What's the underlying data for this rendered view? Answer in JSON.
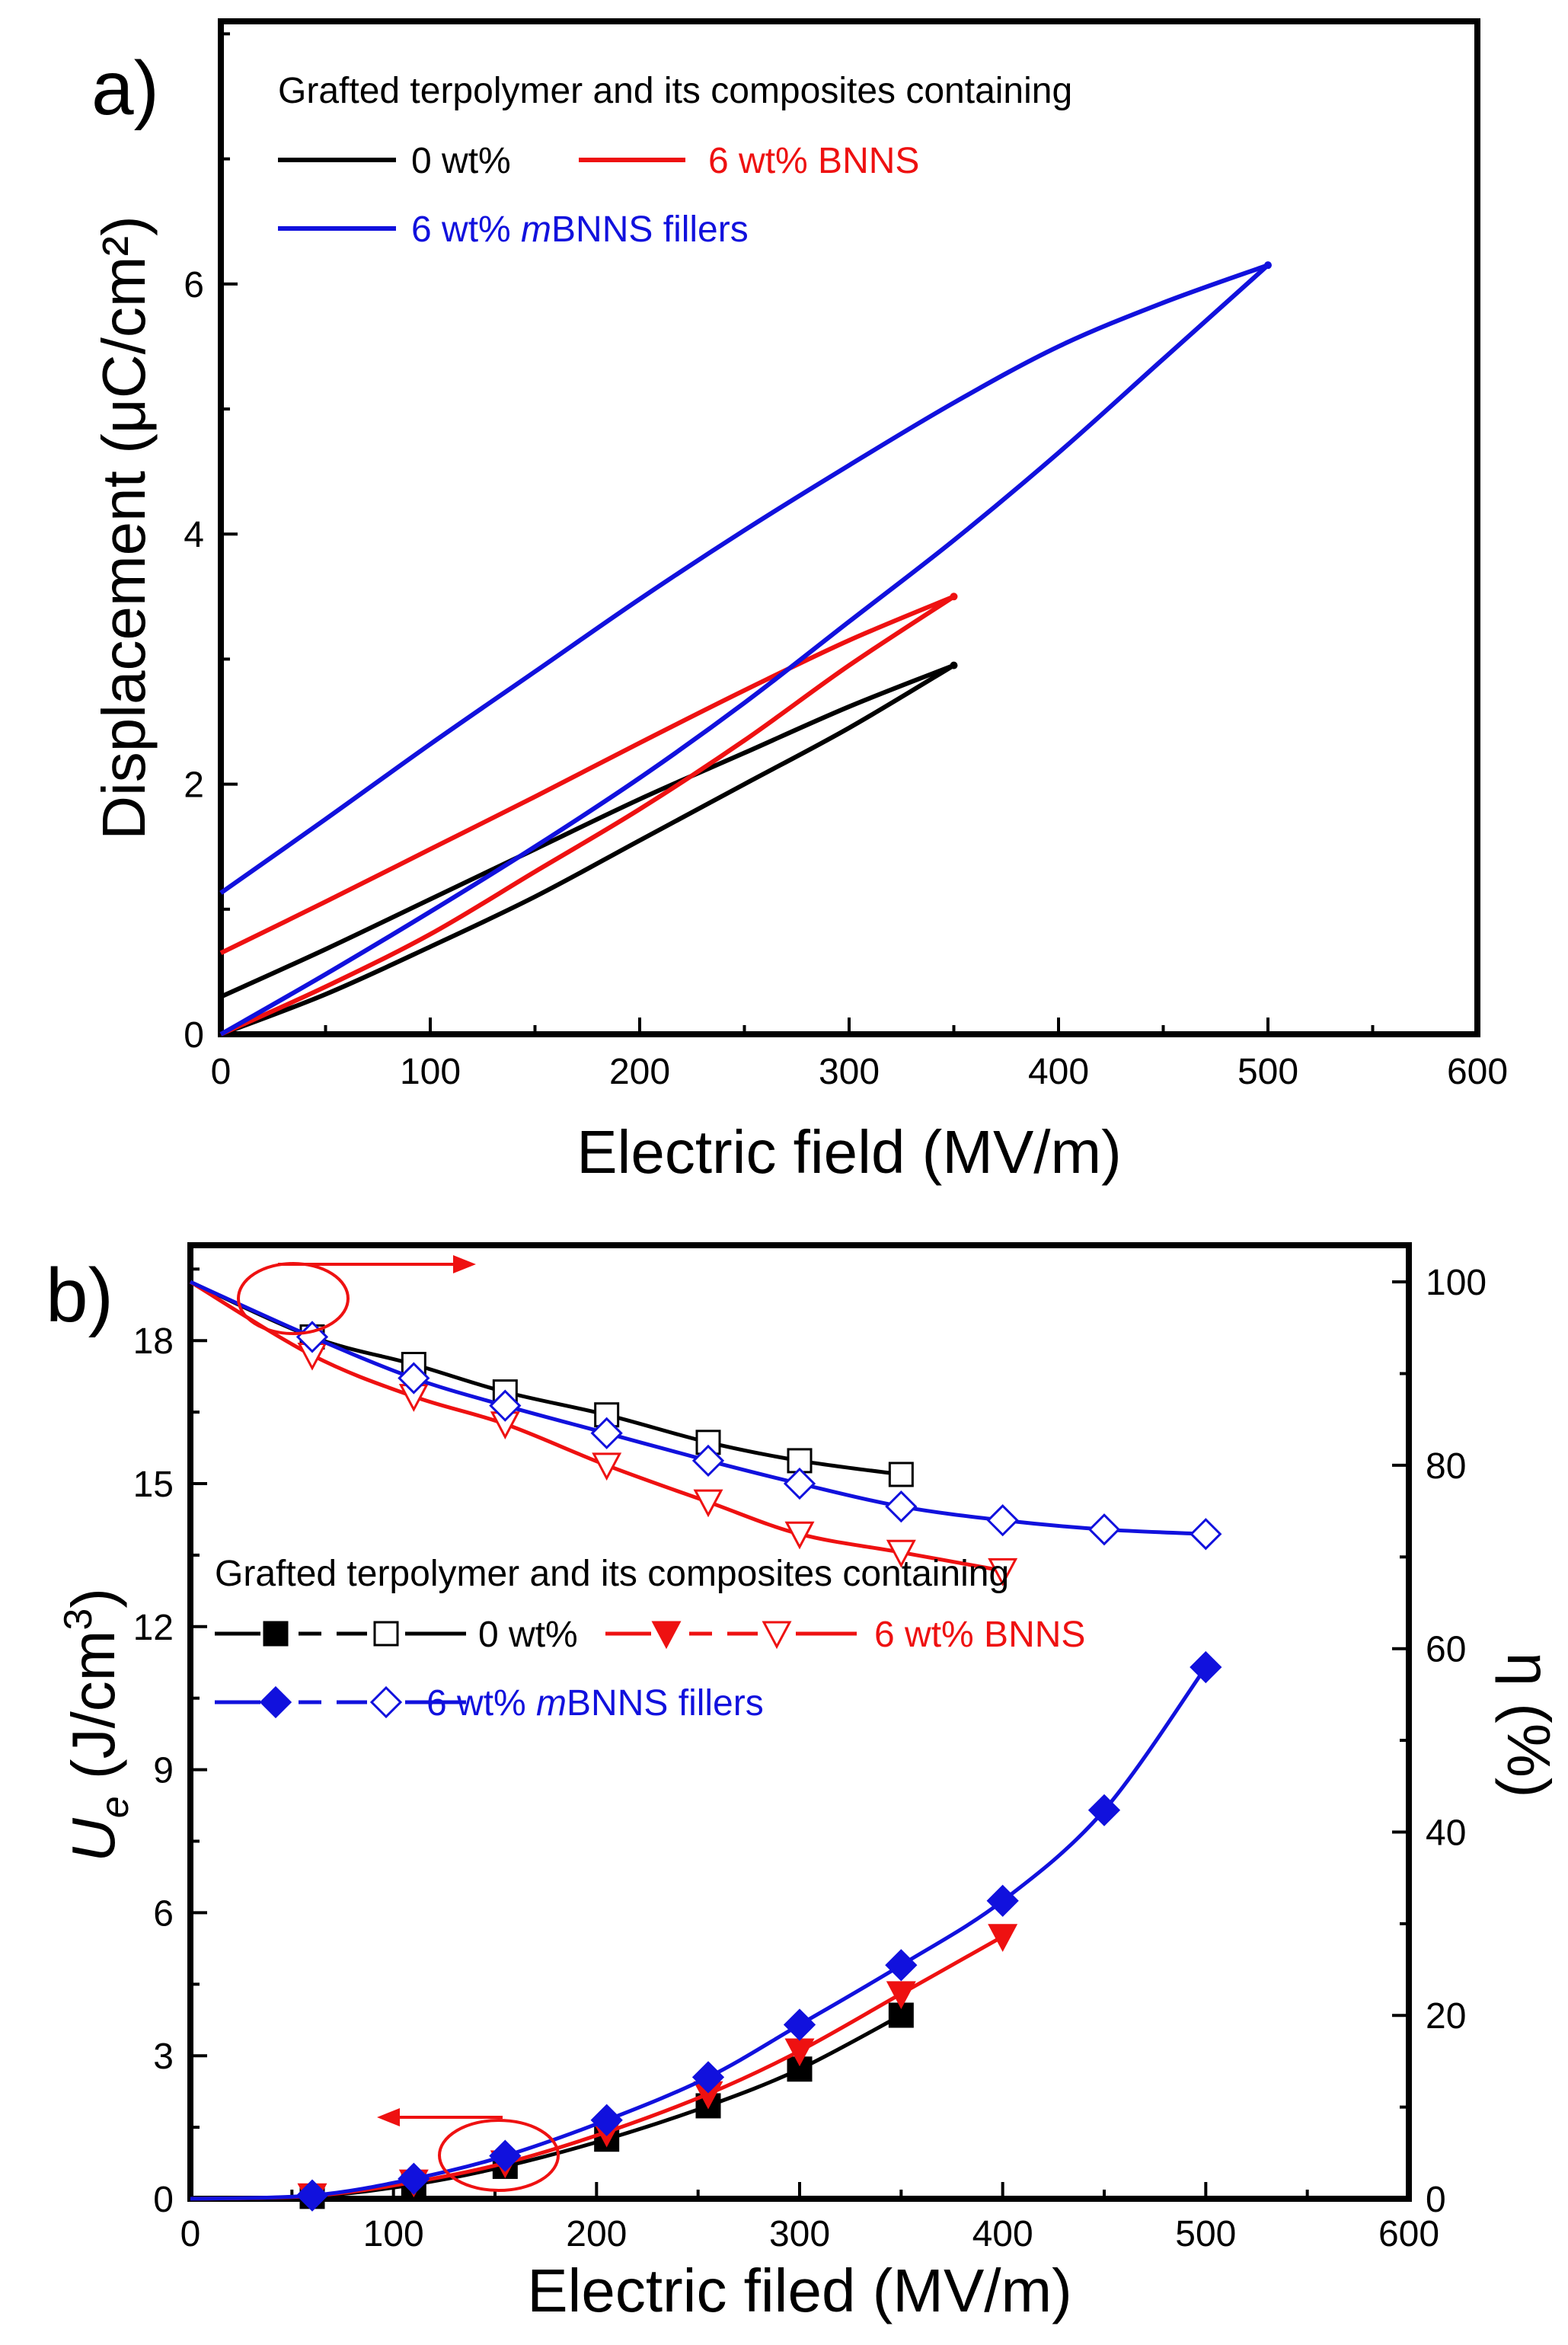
{
  "chart_data": [
    {
      "panel": "a)",
      "type": "line",
      "xlabel": "Electric field (MV/m)",
      "ylabel": "Displacement (μC/cm²)",
      "xlim": [
        0,
        600
      ],
      "ylim": [
        0,
        8.1
      ],
      "xticks": [
        0,
        100,
        200,
        300,
        400,
        500,
        600
      ],
      "yticks": [
        0,
        2,
        4,
        6
      ],
      "grid": false,
      "legend_title": "Grafted terpolymer and its composites containing",
      "legend_placement": "top-left",
      "series": [
        {
          "name": "0 wt%",
          "color": "#000000",
          "emax": 350,
          "dmax": 2.95,
          "charge": [
            [
              0,
              0
            ],
            [
              50,
              0.32
            ],
            [
              100,
              0.7
            ],
            [
              150,
              1.1
            ],
            [
              200,
              1.55
            ],
            [
              250,
              2.0
            ],
            [
              300,
              2.45
            ],
            [
              350,
              2.95
            ]
          ],
          "discharge": [
            [
              350,
              2.95
            ],
            [
              300,
              2.62
            ],
            [
              250,
              2.25
            ],
            [
              200,
              1.88
            ],
            [
              150,
              1.48
            ],
            [
              100,
              1.08
            ],
            [
              50,
              0.68
            ],
            [
              0,
              0.3
            ]
          ]
        },
        {
          "name": "6 wt% BNNS",
          "color": "#ee1111",
          "emax": 350,
          "dmax": 3.5,
          "charge": [
            [
              0,
              0
            ],
            [
              50,
              0.38
            ],
            [
              100,
              0.8
            ],
            [
              150,
              1.3
            ],
            [
              200,
              1.8
            ],
            [
              250,
              2.35
            ],
            [
              300,
              2.95
            ],
            [
              350,
              3.5
            ]
          ],
          "discharge": [
            [
              350,
              3.5
            ],
            [
              300,
              3.15
            ],
            [
              250,
              2.75
            ],
            [
              200,
              2.33
            ],
            [
              150,
              1.9
            ],
            [
              100,
              1.48
            ],
            [
              50,
              1.06
            ],
            [
              0,
              0.65
            ]
          ]
        },
        {
          "name": "6 wt% mBNNS fillers",
          "name_parts": [
            "6 wt% ",
            "m",
            "BNNS fillers"
          ],
          "color": "#1111dd",
          "emax": 500,
          "dmax": 6.15,
          "charge": [
            [
              0,
              0
            ],
            [
              50,
              0.48
            ],
            [
              100,
              0.98
            ],
            [
              150,
              1.5
            ],
            [
              200,
              2.05
            ],
            [
              250,
              2.65
            ],
            [
              300,
              3.3
            ],
            [
              350,
              3.95
            ],
            [
              400,
              4.65
            ],
            [
              450,
              5.4
            ],
            [
              500,
              6.15
            ]
          ],
          "discharge": [
            [
              500,
              6.15
            ],
            [
              450,
              5.85
            ],
            [
              400,
              5.5
            ],
            [
              350,
              5.05
            ],
            [
              300,
              4.55
            ],
            [
              250,
              4.03
            ],
            [
              200,
              3.48
            ],
            [
              150,
              2.9
            ],
            [
              100,
              2.32
            ],
            [
              50,
              1.72
            ],
            [
              0,
              1.13
            ]
          ]
        }
      ]
    },
    {
      "panel": "b)",
      "type": "line",
      "xlabel": "Electric filed (MV/m)",
      "ylabel": "Ue (J/cm3)",
      "ylabel_parts": [
        "U",
        "e",
        " (J/cm",
        "3",
        ")"
      ],
      "y2label": "η (%)",
      "xlim": [
        0,
        600
      ],
      "ylim": [
        0,
        20
      ],
      "y2lim": [
        0,
        104
      ],
      "xticks": [
        0,
        100,
        200,
        300,
        400,
        500,
        600
      ],
      "yticks": [
        0,
        3,
        6,
        9,
        12,
        15,
        18
      ],
      "y2ticks": [
        0,
        20,
        40,
        60,
        80,
        100
      ],
      "grid": false,
      "legend_title": "Grafted terpolymer and its composites containing",
      "legend_placement": "center-left",
      "series": [
        {
          "name": "0 wt%",
          "color": "#000000",
          "ue_marker": "square-filled",
          "eta_marker": "square-open",
          "x": [
            0,
            60,
            110,
            155,
            205,
            255,
            300,
            350
          ],
          "ue": [
            0,
            0.05,
            0.3,
            0.68,
            1.25,
            1.95,
            2.72,
            3.85
          ],
          "eta": [
            100,
            94,
            91,
            88,
            85.5,
            82.5,
            80.5,
            79
          ]
        },
        {
          "name": "6 wt% BNNS",
          "color": "#ee1111",
          "ue_marker": "triangle-down-filled",
          "eta_marker": "triangle-down-open",
          "x": [
            0,
            60,
            110,
            155,
            205,
            255,
            300,
            350,
            400
          ],
          "ue": [
            0,
            0.06,
            0.35,
            0.75,
            1.4,
            2.2,
            3.1,
            4.3,
            5.5
          ],
          "eta": [
            100,
            92,
            87.5,
            84.5,
            80,
            76,
            72.5,
            70.5,
            68.5
          ]
        },
        {
          "name": "6 wt% mBNNS fillers",
          "name_parts": [
            "6 wt% ",
            "m",
            "BNNS fillers"
          ],
          "color": "#1111dd",
          "ue_marker": "diamond-filled",
          "eta_marker": "diamond-open",
          "x": [
            0,
            60,
            110,
            155,
            205,
            255,
            300,
            350,
            400,
            450,
            500
          ],
          "ue": [
            0,
            0.07,
            0.42,
            0.9,
            1.65,
            2.55,
            3.65,
            4.9,
            6.25,
            8.15,
            11.15
          ],
          "eta": [
            100,
            94,
            89.5,
            86.5,
            83.5,
            80.5,
            78,
            75.5,
            74,
            73,
            72.5
          ]
        }
      ]
    }
  ]
}
